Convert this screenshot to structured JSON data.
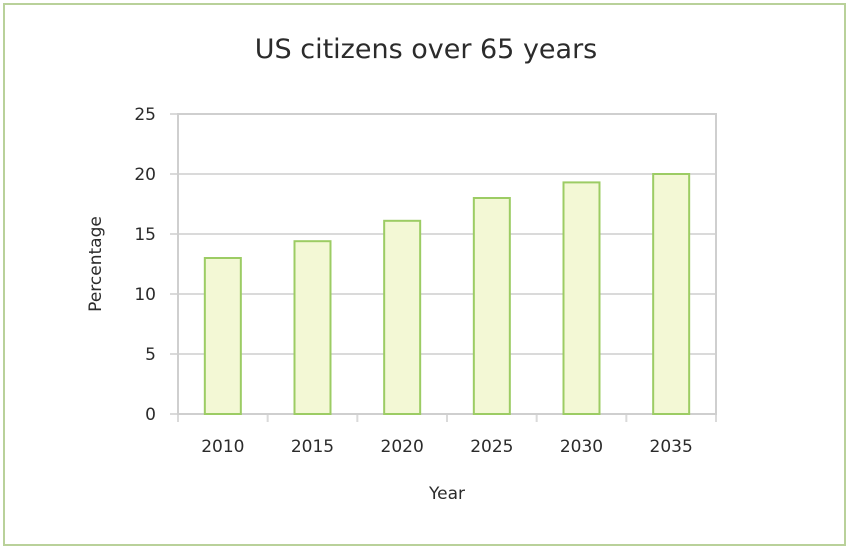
{
  "chart_data": {
    "type": "bar",
    "title": "US citizens over 65 years",
    "xlabel": "Year",
    "ylabel": "Percentage",
    "categories": [
      "2010",
      "2015",
      "2020",
      "2025",
      "2030",
      "2035"
    ],
    "values": [
      13,
      14.4,
      16.1,
      18.0,
      19.3,
      20.0
    ],
    "ylim": [
      0,
      25
    ],
    "yticks": [
      "0",
      "5",
      "10",
      "15",
      "20",
      "25"
    ],
    "grid": true,
    "legend": "none",
    "colors": {
      "bar_fill": "#f3f8d5",
      "bar_stroke": "#9ccc64",
      "frame": "#b9d19a",
      "grid": "#dadada"
    }
  }
}
